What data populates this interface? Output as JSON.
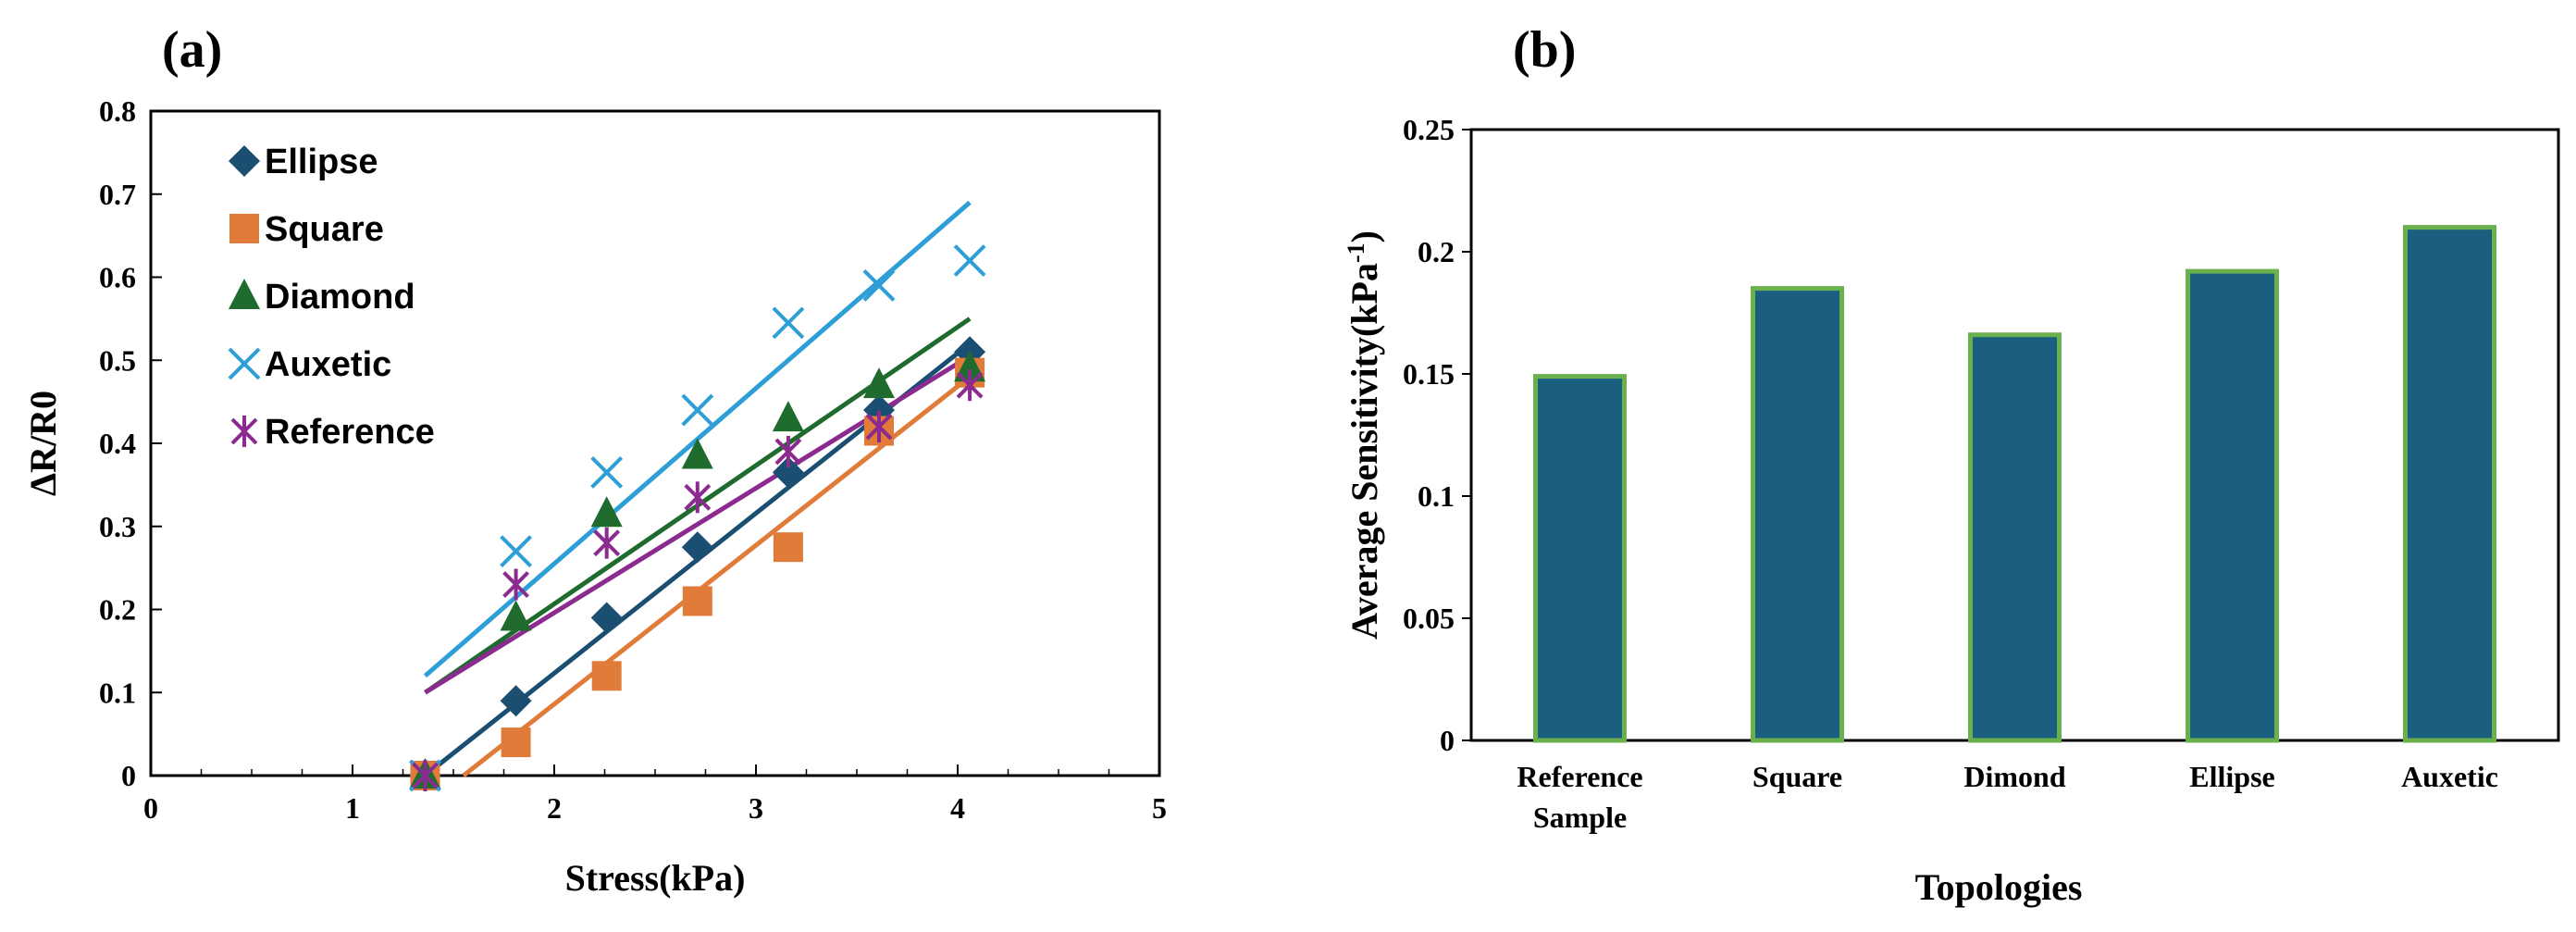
{
  "chart_data": [
    {
      "panel": "(a)",
      "type": "scatter",
      "xlabel": "Stress(kPa)",
      "ylabel": "ΔR/R0",
      "xlim": [
        0,
        5
      ],
      "ylim": [
        0,
        0.8
      ],
      "xticks": [
        "0",
        "1",
        "2",
        "3",
        "4",
        "5"
      ],
      "yticks": [
        "0",
        "0.1",
        "0.2",
        "0.3",
        "0.4",
        "0.5",
        "0.6",
        "0.7",
        "0.8"
      ],
      "legend_position": "top-left",
      "series": [
        {
          "name": "Ellipse",
          "marker": "diamond",
          "color": "#1a4f72",
          "x": [
            1.36,
            1.81,
            2.26,
            2.71,
            3.16,
            3.61,
            4.06
          ],
          "y": [
            0.0,
            0.09,
            0.19,
            0.275,
            0.365,
            0.44,
            0.51
          ],
          "fit": {
            "x": [
              1.36,
              4.06
            ],
            "y": [
              0.0,
              0.52
            ]
          }
        },
        {
          "name": "Square",
          "marker": "square",
          "color": "#e07b39",
          "x": [
            1.36,
            1.81,
            2.26,
            2.71,
            3.16,
            3.61,
            4.06
          ],
          "y": [
            0.0,
            0.04,
            0.12,
            0.21,
            0.275,
            0.415,
            0.485
          ],
          "fit": {
            "x": [
              1.55,
              4.06
            ],
            "y": [
              0.0,
              0.48
            ]
          }
        },
        {
          "name": "Diamond",
          "marker": "triangle",
          "color": "#1e6b2d",
          "x": [
            1.36,
            1.81,
            2.26,
            2.71,
            3.16,
            3.61,
            4.06
          ],
          "y": [
            0.0,
            0.19,
            0.315,
            0.385,
            0.43,
            0.47,
            0.49
          ],
          "fit": {
            "x": [
              1.36,
              4.06
            ],
            "y": [
              0.1,
              0.55
            ]
          }
        },
        {
          "name": "Auxetic",
          "marker": "x",
          "color": "#2e9fd6",
          "x": [
            1.36,
            1.81,
            2.26,
            2.71,
            3.16,
            3.61,
            4.06
          ],
          "y": [
            0.0,
            0.27,
            0.365,
            0.44,
            0.545,
            0.59,
            0.62
          ],
          "fit": {
            "x": [
              1.36,
              4.06
            ],
            "y": [
              0.12,
              0.69
            ]
          }
        },
        {
          "name": "Reference",
          "marker": "star",
          "color": "#8b2a8f",
          "x": [
            1.36,
            1.81,
            2.26,
            2.71,
            3.16,
            3.61,
            4.06
          ],
          "y": [
            0.0,
            0.23,
            0.28,
            0.335,
            0.39,
            0.42,
            0.47
          ],
          "fit": {
            "x": [
              1.36,
              4.06
            ],
            "y": [
              0.1,
              0.505
            ]
          }
        }
      ]
    },
    {
      "panel": "(b)",
      "type": "bar",
      "xlabel": "Topologies",
      "ylabel": "Average Sensitivity(kPa-1)",
      "ylabel_main": "Average Sensitivity(kPa",
      "ylabel_sup": "-1",
      "ylabel_end": ")",
      "ylim": [
        0,
        0.25
      ],
      "yticks": [
        "0",
        "0.05",
        "0.1",
        "0.15",
        "0.2",
        "0.25"
      ],
      "bar_color": "#1a5f80",
      "bar_edge_color": "#6ab04c",
      "categories": [
        [
          "Reference",
          "Sample"
        ],
        [
          "Square"
        ],
        [
          "Dimond"
        ],
        [
          "Ellipse"
        ],
        [
          "Auxetic"
        ]
      ],
      "values": [
        0.149,
        0.185,
        0.166,
        0.192,
        0.21
      ]
    }
  ]
}
